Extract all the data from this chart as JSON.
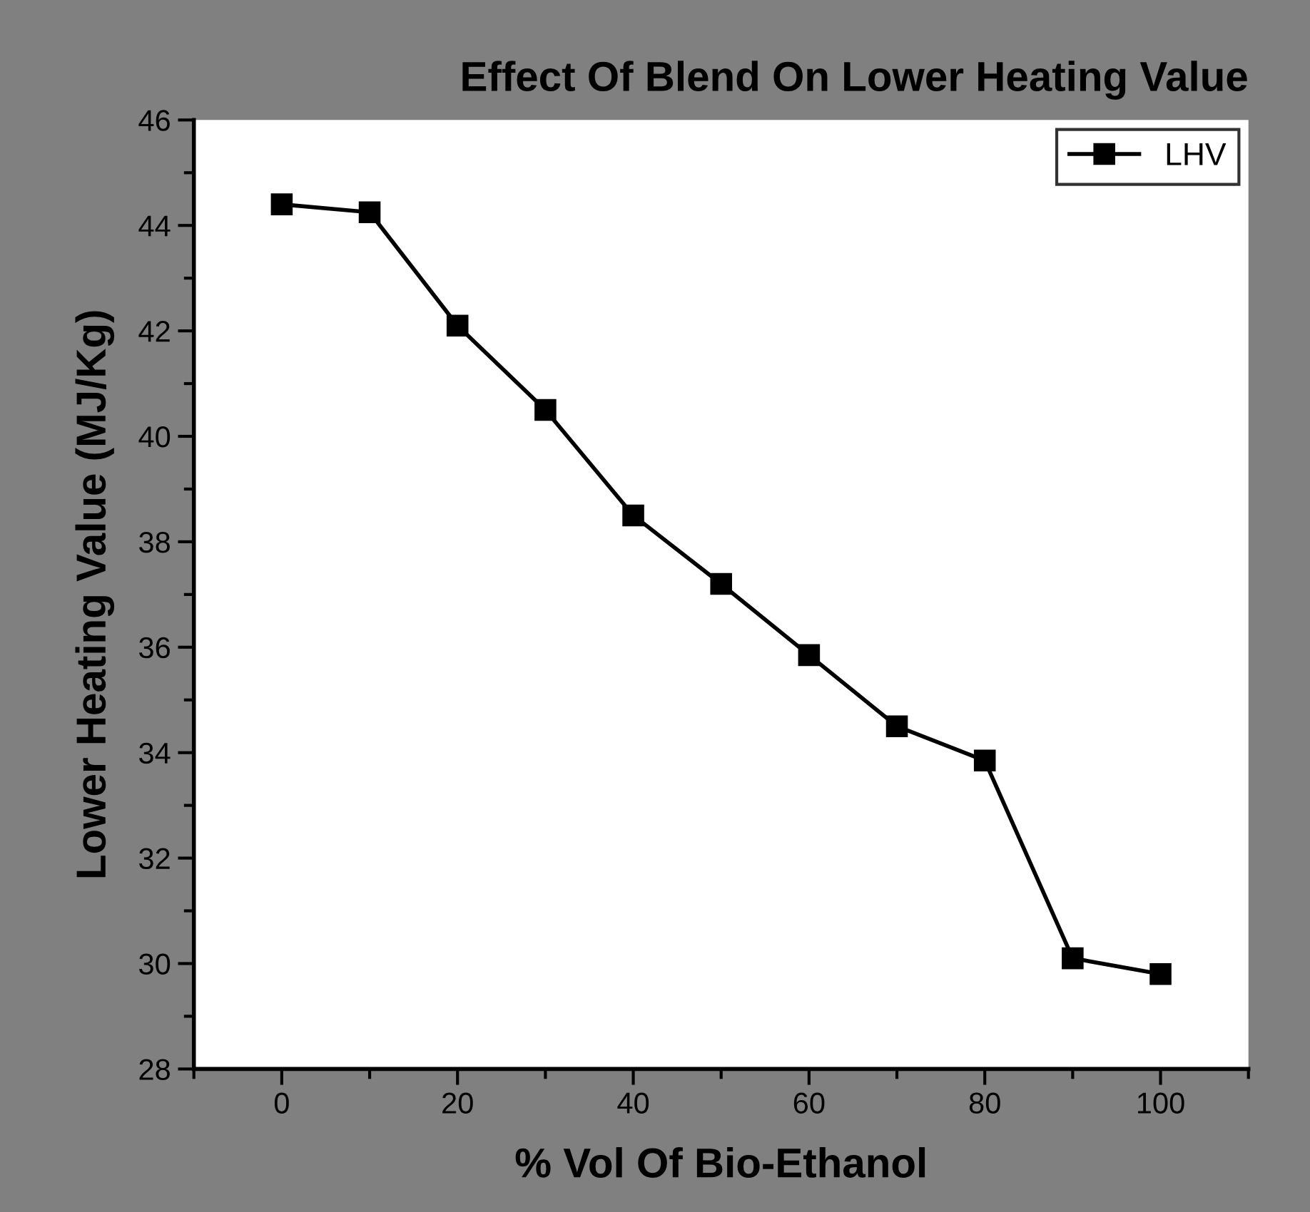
{
  "chart_data": {
    "type": "line",
    "title": "Effect Of Blend On Lower Heating Value",
    "xlabel": "% Vol Of Bio-Ethanol",
    "ylabel": "Lower Heating Value (MJ/Kg)",
    "x": [
      0,
      10,
      20,
      30,
      40,
      50,
      60,
      70,
      80,
      90,
      100
    ],
    "series": [
      {
        "name": "LHV",
        "color": "#000000",
        "values": [
          44.4,
          44.25,
          42.1,
          40.5,
          38.5,
          37.2,
          35.85,
          34.5,
          33.85,
          30.1,
          29.8
        ]
      }
    ],
    "xlim": [
      -10,
      110
    ],
    "xticks": [
      0,
      20,
      40,
      60,
      80,
      100
    ],
    "ylim": [
      28,
      46
    ],
    "yticks": [
      28,
      30,
      32,
      34,
      36,
      38,
      40,
      42,
      44,
      46
    ],
    "grid": false,
    "legend": "top right",
    "marker": "square",
    "line_style": "solid"
  }
}
